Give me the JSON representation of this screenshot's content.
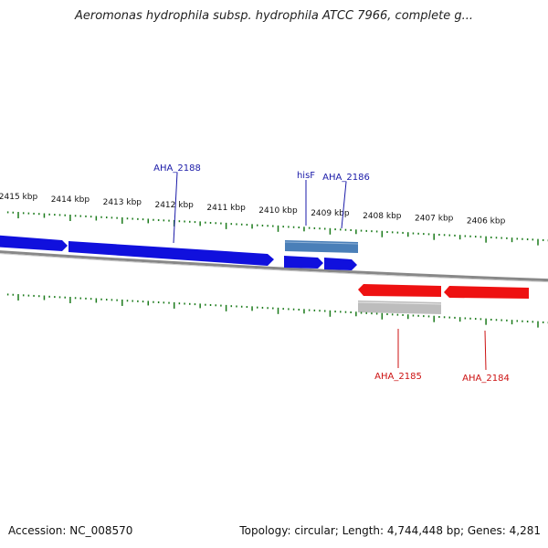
{
  "title": "Aeromonas hydrophila subsp. hydrophila ATCC 7966, complete g...",
  "footer": {
    "accession": "Accession: NC_008570",
    "summary": "Topology: circular; Length: 4,744,448 bp; Genes: 4,281"
  },
  "colors": {
    "forward_cds": "#1010dd",
    "reverse_cds": "#ee1111",
    "forward_gene": "#4a7fb8",
    "reverse_gene": "#bdbdbd",
    "backbone": "#888888",
    "ticks": "#1a7a1a",
    "label_forward": "#1a1aa8",
    "label_reverse": "#cc1111"
  },
  "scale_unit": "kbp",
  "tick_labels": [
    "2415 kbp",
    "2414 kbp",
    "2413 kbp",
    "2412 kbp",
    "2411 kbp",
    "2410 kbp",
    "2409 kbp",
    "2408 kbp",
    "2407 kbp",
    "2406 kbp"
  ],
  "gene_labels": [
    {
      "text": "AHA_2188",
      "strand": "forward"
    },
    {
      "text": "hisF",
      "strand": "forward"
    },
    {
      "text": "AHA_2186",
      "strand": "forward"
    },
    {
      "text": "AHA_2185",
      "strand": "reverse"
    },
    {
      "text": "AHA_2184",
      "strand": "reverse"
    }
  ]
}
